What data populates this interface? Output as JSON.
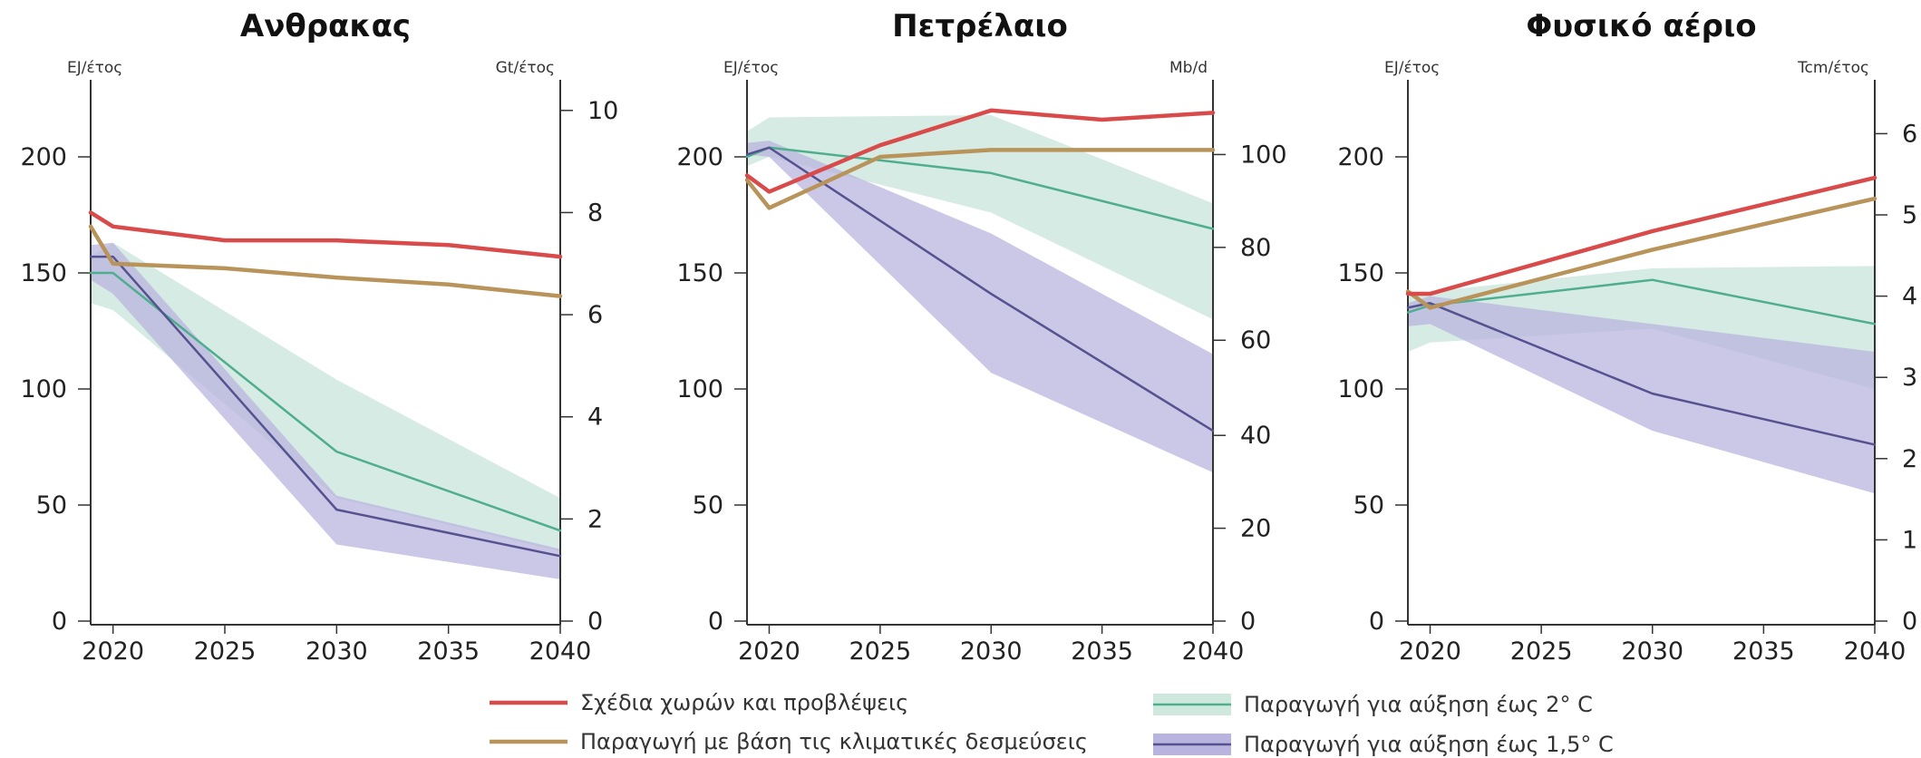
{
  "colors": {
    "plans": "#d94b4b",
    "pledges": "#b8935a",
    "band2": "#cfe8de",
    "line2": "#4fae8f",
    "band15": "#b9b4df",
    "line15": "#56528f",
    "overlap": "#9ab0c4"
  },
  "legend": [
    {
      "key": "plans",
      "label": "Σχέδια χωρών και προβλέψεις"
    },
    {
      "key": "pledges",
      "label": "Παραγωγή με βάση τις κλιματικές δεσμεύσεις"
    },
    {
      "key": "line2",
      "label": "Παραγωγή για αύξηση έως 2° C"
    },
    {
      "key": "line15",
      "label": "Παραγωγή για αύξηση έως 1,5° C"
    }
  ],
  "chart_data": [
    {
      "type": "line",
      "title": "Ανθρακας",
      "ylabel": "EJ/έτος",
      "y2label": "Gt/έτος",
      "xlim": [
        2019,
        2040
      ],
      "ylim": [
        0,
        225
      ],
      "xticks": [
        "2020",
        "2025",
        "2030",
        "2035",
        "2040"
      ],
      "yticks": [
        "0",
        "50",
        "100",
        "150",
        "200"
      ],
      "y2ticks": [
        {
          "label": "0",
          "value": 0
        },
        {
          "label": "2",
          "value": 44
        },
        {
          "label": "4",
          "value": 88
        },
        {
          "label": "6",
          "value": 132
        },
        {
          "label": "8",
          "value": 176
        },
        {
          "label": "10",
          "value": 220
        }
      ],
      "series": [
        {
          "key": "plans",
          "x": [
            2019,
            2020,
            2025,
            2030,
            2035,
            2040
          ],
          "y": [
            176,
            170,
            164,
            164,
            162,
            157
          ]
        },
        {
          "key": "pledges",
          "x": [
            2019,
            2020,
            2025,
            2030,
            2035,
            2040
          ],
          "y": [
            170,
            154,
            152,
            148,
            145,
            140
          ]
        },
        {
          "key": "line2",
          "x": [
            2019,
            2020,
            2030,
            2040
          ],
          "y": [
            150,
            150,
            73,
            39
          ]
        },
        {
          "key": "line15",
          "x": [
            2019,
            2020,
            2030,
            2040
          ],
          "y": [
            157,
            157,
            48,
            28
          ]
        }
      ],
      "bands": [
        {
          "key": "band2",
          "x": [
            2019,
            2020,
            2030,
            2040
          ],
          "upper": [
            157,
            163,
            104,
            53
          ],
          "lower": [
            137,
            134,
            53,
            30
          ]
        },
        {
          "key": "band15",
          "x": [
            2019,
            2020,
            2030,
            2040
          ],
          "upper": [
            162,
            163,
            54,
            31
          ],
          "lower": [
            147,
            141,
            33,
            18
          ]
        }
      ]
    },
    {
      "type": "line",
      "title": "Πετρέλαιο",
      "ylabel": "EJ/έτος",
      "y2label": "Mb/d",
      "xlim": [
        2019,
        2040
      ],
      "ylim": [
        0,
        225
      ],
      "xticks": [
        "2020",
        "2025",
        "2030",
        "2035",
        "2040"
      ],
      "yticks": [
        "0",
        "50",
        "100",
        "150",
        "200"
      ],
      "y2ticks": [
        {
          "label": "0",
          "value": 0
        },
        {
          "label": "20",
          "value": 40
        },
        {
          "label": "40",
          "value": 80
        },
        {
          "label": "60",
          "value": 121
        },
        {
          "label": "80",
          "value": 161
        },
        {
          "label": "100",
          "value": 201
        }
      ],
      "series": [
        {
          "key": "plans",
          "x": [
            2019,
            2020,
            2025,
            2030,
            2035,
            2040
          ],
          "y": [
            192,
            185,
            205,
            220,
            216,
            219
          ]
        },
        {
          "key": "pledges",
          "x": [
            2019,
            2020,
            2025,
            2030,
            2035,
            2040
          ],
          "y": [
            190,
            178,
            200,
            203,
            203,
            203
          ]
        },
        {
          "key": "line2",
          "x": [
            2019,
            2020,
            2030,
            2040
          ],
          "y": [
            200,
            204,
            193,
            169
          ]
        },
        {
          "key": "line15",
          "x": [
            2019,
            2020,
            2030,
            2040
          ],
          "y": [
            201,
            204,
            141,
            82
          ]
        }
      ],
      "bands": [
        {
          "key": "band2",
          "x": [
            2019,
            2020,
            2030,
            2040
          ],
          "upper": [
            211,
            217,
            218,
            180
          ],
          "lower": [
            196,
            200,
            176,
            130
          ]
        },
        {
          "key": "band15",
          "x": [
            2019,
            2020,
            2030,
            2040
          ],
          "upper": [
            206,
            207,
            167,
            115
          ],
          "lower": [
            201,
            200,
            107,
            64
          ]
        }
      ]
    },
    {
      "type": "line",
      "title": "Φυσικό αέριο",
      "ylabel": "EJ/έτος",
      "y2label": "Tcm/έτος",
      "xlim": [
        2019,
        2040
      ],
      "ylim": [
        0,
        225
      ],
      "xticks": [
        "2020",
        "2025",
        "2030",
        "2035",
        "2040"
      ],
      "yticks": [
        "0",
        "50",
        "100",
        "150",
        "200"
      ],
      "y2ticks": [
        {
          "label": "0",
          "value": 0
        },
        {
          "label": "1",
          "value": 35
        },
        {
          "label": "2",
          "value": 70
        },
        {
          "label": "3",
          "value": 105
        },
        {
          "label": "4",
          "value": 140
        },
        {
          "label": "5",
          "value": 175
        },
        {
          "label": "6",
          "value": 210
        }
      ],
      "series": [
        {
          "key": "plans",
          "x": [
            2019,
            2020,
            2030,
            2040
          ],
          "y": [
            141,
            141,
            168,
            191
          ]
        },
        {
          "key": "pledges",
          "x": [
            2019,
            2020,
            2030,
            2040
          ],
          "y": [
            142,
            135,
            160,
            182
          ]
        },
        {
          "key": "line2",
          "x": [
            2019,
            2020,
            2030,
            2040
          ],
          "y": [
            133,
            136,
            147,
            128
          ]
        },
        {
          "key": "line15",
          "x": [
            2019,
            2020,
            2030,
            2040
          ],
          "y": [
            135,
            137,
            98,
            76
          ]
        }
      ],
      "bands": [
        {
          "key": "band2",
          "x": [
            2019,
            2020,
            2030,
            2040
          ],
          "upper": [
            140,
            142,
            152,
            153
          ],
          "lower": [
            116,
            120,
            126,
            100
          ]
        },
        {
          "key": "band15",
          "x": [
            2019,
            2020,
            2030,
            2040
          ],
          "upper": [
            137,
            140,
            128,
            116
          ],
          "lower": [
            127,
            128,
            82,
            55
          ]
        }
      ]
    }
  ]
}
